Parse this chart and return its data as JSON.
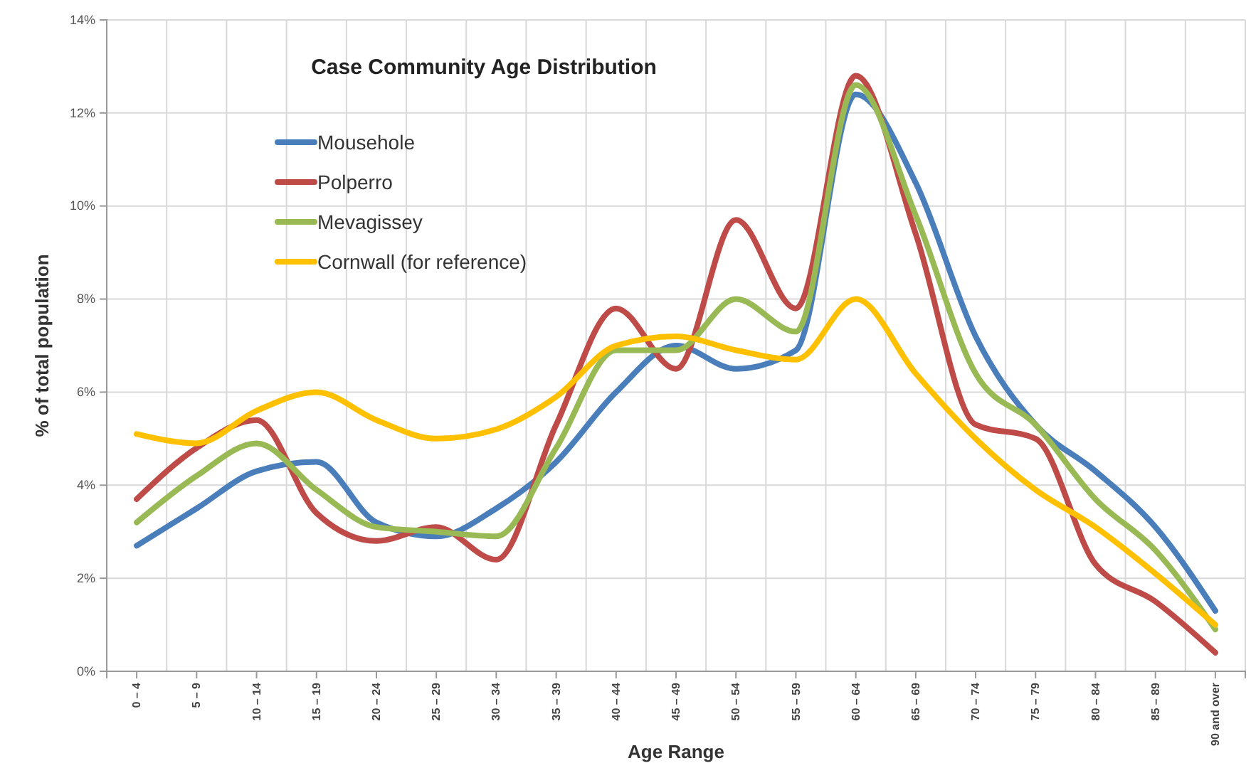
{
  "chart_data": {
    "type": "line",
    "title": "Case Community Age Distribution",
    "xlabel": "Age Range",
    "ylabel": "% of total population",
    "categories": [
      "0 – 4",
      "5 – 9",
      "10 – 14",
      "15 – 19",
      "20 – 24",
      "25 – 29",
      "30 – 34",
      "35 – 39",
      "40 – 44",
      "45 – 49",
      "50 – 54",
      "55 – 59",
      "60 – 64",
      "65 – 69",
      "70 – 74",
      "75 – 79",
      "80 – 84",
      "85 – 89",
      "90 and over"
    ],
    "series": [
      {
        "name": "Mousehole",
        "color": "#4a7ebb",
        "values": [
          2.7,
          3.5,
          4.3,
          4.5,
          3.2,
          2.9,
          3.5,
          4.5,
          6.0,
          7.0,
          6.5,
          6.9,
          12.4,
          10.5,
          7.2,
          5.3,
          4.3,
          3.1,
          1.3
        ]
      },
      {
        "name": "Polperro",
        "color": "#be4b48",
        "values": [
          3.7,
          4.8,
          5.4,
          3.4,
          2.8,
          3.1,
          2.4,
          5.3,
          7.8,
          6.5,
          9.7,
          7.8,
          12.8,
          9.4,
          5.3,
          5.0,
          2.3,
          1.5,
          0.4
        ]
      },
      {
        "name": "Mevagissey",
        "color": "#98b954",
        "values": [
          3.2,
          4.2,
          4.9,
          3.9,
          3.1,
          3.0,
          2.9,
          4.8,
          6.9,
          6.9,
          8.0,
          7.3,
          12.6,
          9.8,
          6.4,
          5.3,
          3.7,
          2.6,
          0.9
        ]
      },
      {
        "name": "Cornwall (for reference)",
        "color": "#ffc000",
        "values": [
          5.1,
          4.9,
          5.6,
          6.0,
          5.4,
          5.0,
          5.2,
          5.9,
          7.0,
          7.2,
          6.9,
          6.7,
          8.0,
          6.4,
          5.0,
          3.9,
          3.1,
          2.1,
          1.0
        ]
      }
    ],
    "ylim": [
      0,
      14
    ],
    "yticks": [
      {
        "value": 0,
        "label": "0%"
      },
      {
        "value": 2,
        "label": "2%"
      },
      {
        "value": 4,
        "label": "4%"
      },
      {
        "value": 6,
        "label": "6%"
      },
      {
        "value": 8,
        "label": "8%"
      },
      {
        "value": 10,
        "label": "10%"
      },
      {
        "value": 12,
        "label": "12%"
      },
      {
        "value": 14,
        "label": "14%"
      }
    ],
    "grid": true,
    "legend": "top left"
  }
}
